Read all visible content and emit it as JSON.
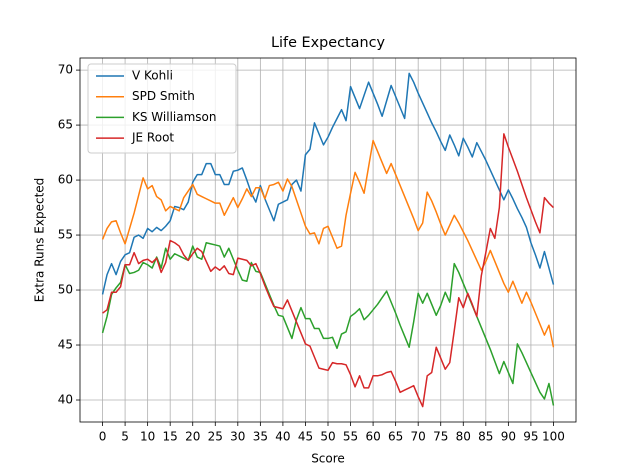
{
  "chart_data": {
    "type": "line",
    "title": "Life Expectancy",
    "x_label": "Score",
    "y_label": "Extra Runs Expected",
    "x": [
      0,
      1,
      2,
      3,
      4,
      5,
      6,
      7,
      8,
      9,
      10,
      11,
      12,
      13,
      14,
      15,
      16,
      17,
      18,
      19,
      20,
      21,
      22,
      23,
      24,
      25,
      26,
      27,
      28,
      29,
      30,
      31,
      32,
      33,
      34,
      35,
      36,
      37,
      38,
      39,
      40,
      41,
      42,
      43,
      44,
      45,
      46,
      47,
      48,
      49,
      50,
      51,
      52,
      53,
      54,
      55,
      56,
      57,
      58,
      59,
      60,
      61,
      62,
      63,
      64,
      65,
      66,
      67,
      68,
      69,
      70,
      71,
      72,
      73,
      74,
      75,
      76,
      77,
      78,
      79,
      80,
      81,
      82,
      83,
      84,
      85,
      86,
      87,
      88,
      89,
      90,
      91,
      92,
      93,
      94,
      95,
      96,
      97,
      98,
      99,
      100
    ],
    "series": [
      {
        "name": "V Kohli",
        "color": "#1f77b4",
        "values": [
          49.6,
          51.4,
          52.4,
          51.4,
          52.6,
          53.2,
          53.4,
          54.8,
          55.0,
          54.7,
          55.6,
          55.3,
          55.7,
          55.4,
          55.8,
          56.3,
          57.6,
          57.5,
          57.3,
          58.0,
          59.8,
          60.5,
          60.5,
          61.5,
          61.5,
          60.5,
          60.5,
          59.6,
          59.6,
          60.8,
          60.9,
          61.1,
          60.0,
          58.8,
          58.0,
          59.5,
          58.3,
          57.3,
          56.3,
          57.8,
          58.0,
          58.2,
          59.6,
          60.0,
          59.0,
          62.3,
          62.8,
          65.2,
          64.2,
          63.2,
          63.9,
          64.8,
          65.6,
          66.4,
          65.4,
          68.5,
          67.5,
          66.5,
          67.7,
          68.9,
          67.9,
          66.9,
          65.8,
          67.2,
          68.6,
          67.6,
          66.6,
          65.6,
          69.7,
          68.9,
          67.9,
          67.0,
          66.1,
          65.2,
          64.4,
          63.5,
          62.7,
          64.1,
          63.2,
          62.2,
          63.8,
          63.0,
          62.1,
          63.4,
          62.6,
          61.8,
          60.9,
          60.0,
          59.1,
          58.2,
          59.1,
          58.3,
          57.4,
          56.6,
          55.7,
          54.3,
          53.2,
          52.0,
          53.5,
          52.0,
          50.5
        ]
      },
      {
        "name": "SPD Smith",
        "color": "#ff7f0e",
        "values": [
          54.6,
          55.6,
          56.2,
          56.3,
          55.2,
          54.2,
          55.6,
          57.0,
          58.6,
          60.2,
          59.2,
          59.5,
          58.5,
          58.2,
          57.2,
          57.6,
          57.4,
          57.2,
          58.4,
          59.0,
          59.6,
          58.7,
          58.5,
          58.3,
          58.1,
          57.9,
          57.9,
          56.8,
          57.6,
          58.4,
          57.5,
          58.3,
          59.2,
          58.5,
          59.3,
          59.3,
          58.3,
          59.5,
          59.6,
          59.8,
          59.0,
          60.1,
          59.4,
          58.2,
          57.0,
          55.8,
          55.1,
          55.2,
          54.2,
          55.6,
          55.8,
          54.8,
          53.8,
          54.0,
          56.8,
          58.8,
          60.7,
          59.8,
          58.8,
          61.2,
          63.6,
          62.6,
          61.6,
          60.6,
          61.5,
          60.5,
          59.5,
          58.5,
          57.5,
          56.5,
          55.4,
          56.1,
          58.9,
          58.1,
          57.1,
          56.0,
          55.0,
          55.9,
          56.8,
          56.1,
          55.3,
          54.5,
          53.6,
          52.7,
          51.8,
          52.6,
          53.6,
          52.6,
          51.6,
          50.6,
          49.8,
          50.8,
          49.8,
          48.8,
          49.8,
          48.9,
          47.9,
          46.9,
          45.9,
          46.8,
          44.8
        ]
      },
      {
        "name": "KS Williamson",
        "color": "#2ca02c",
        "values": [
          46.1,
          47.6,
          49.6,
          50.2,
          50.7,
          52.3,
          51.5,
          51.6,
          51.8,
          52.5,
          52.3,
          52.0,
          53.0,
          52.0,
          53.8,
          52.8,
          53.3,
          53.1,
          52.9,
          52.7,
          54.0,
          53.0,
          52.8,
          54.3,
          54.2,
          54.1,
          54.0,
          53.0,
          53.8,
          52.8,
          51.8,
          50.9,
          50.8,
          52.5,
          51.7,
          51.6,
          50.6,
          49.6,
          48.6,
          47.7,
          47.6,
          46.6,
          45.6,
          47.3,
          48.4,
          47.4,
          47.4,
          46.5,
          46.5,
          45.6,
          45.6,
          45.7,
          44.7,
          46.0,
          46.2,
          47.6,
          47.9,
          48.3,
          47.3,
          47.7,
          48.2,
          48.7,
          49.3,
          49.9,
          48.9,
          47.9,
          46.8,
          45.8,
          44.8,
          47.1,
          49.7,
          48.8,
          49.7,
          48.7,
          47.7,
          48.6,
          49.8,
          48.9,
          52.4,
          51.6,
          50.6,
          49.6,
          48.6,
          47.6,
          46.6,
          45.6,
          44.6,
          43.5,
          42.4,
          43.5,
          42.5,
          41.5,
          45.1,
          44.3,
          43.4,
          42.5,
          41.6,
          40.7,
          40.1,
          41.5,
          39.5
        ]
      },
      {
        "name": "JE Root",
        "color": "#d62728",
        "values": [
          47.9,
          48.2,
          49.8,
          49.8,
          50.3,
          52.3,
          52.3,
          53.4,
          52.4,
          52.7,
          52.8,
          52.5,
          52.9,
          51.6,
          52.5,
          54.5,
          54.3,
          54.0,
          53.2,
          52.7,
          53.3,
          53.8,
          53.5,
          52.6,
          51.7,
          52.1,
          51.8,
          52.2,
          51.5,
          51.4,
          52.9,
          52.8,
          52.7,
          52.2,
          52.4,
          51.5,
          50.4,
          49.4,
          48.5,
          48.4,
          48.3,
          49.1,
          48.1,
          47.1,
          46.1,
          45.1,
          44.9,
          43.9,
          42.9,
          42.8,
          42.7,
          43.4,
          43.3,
          43.3,
          43.2,
          42.3,
          41.2,
          42.2,
          41.1,
          41.1,
          42.2,
          42.2,
          42.3,
          42.5,
          42.6,
          41.7,
          40.7,
          40.9,
          41.1,
          41.3,
          40.3,
          39.4,
          42.2,
          42.5,
          44.8,
          43.8,
          42.8,
          43.4,
          46.3,
          49.3,
          48.4,
          49.7,
          48.7,
          47.6,
          51.3,
          53.4,
          55.6,
          54.7,
          57.5,
          64.2,
          63.0,
          61.9,
          60.8,
          59.6,
          58.4,
          57.3,
          56.2,
          55.2,
          58.4,
          57.9,
          57.5
        ]
      }
    ],
    "xlim": [
      -5,
      105
    ],
    "xticks": [
      0,
      5,
      10,
      15,
      20,
      25,
      30,
      35,
      40,
      45,
      50,
      55,
      60,
      65,
      70,
      75,
      80,
      85,
      90,
      95,
      100
    ],
    "ylim": [
      38,
      71.1
    ],
    "yticks": [
      40,
      45,
      50,
      55,
      60,
      65,
      70
    ],
    "grid": true,
    "legend": "upper left"
  }
}
